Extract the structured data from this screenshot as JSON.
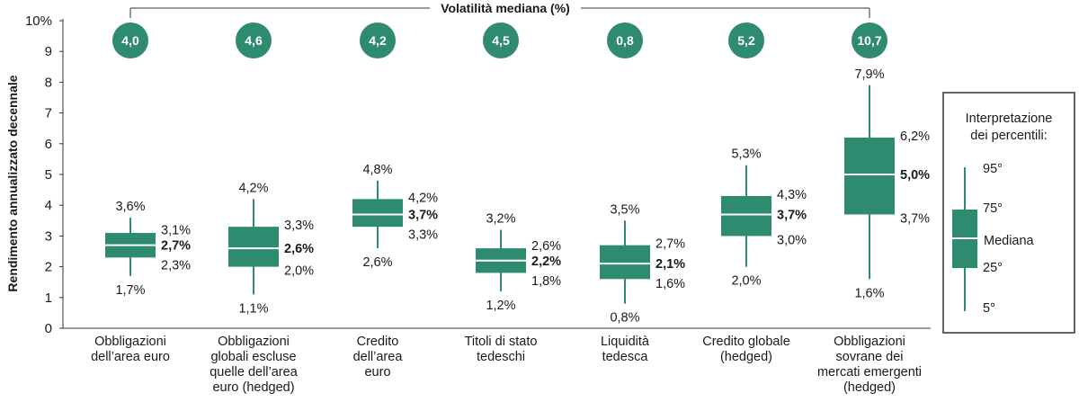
{
  "colors": {
    "box": "#2e8b70",
    "median": "#ffffff",
    "text": "#1a1a1a",
    "axis": "#333333",
    "legend_border": "#333333"
  },
  "chart_data": {
    "type": "box",
    "ylabel": "Rendimento annualizzato decennale",
    "ylim": [
      0,
      10
    ],
    "yticks": [
      "0",
      "1",
      "2",
      "3",
      "4",
      "5",
      "6",
      "7",
      "8",
      "9",
      "10%"
    ],
    "volatility_title": "Volatilità mediana (%)",
    "categories": [
      {
        "label": [
          "Obbligazioni",
          "dell’area euro"
        ],
        "volatility": "4,0",
        "p5": 1.7,
        "p25": 2.3,
        "median": 2.7,
        "p75": 3.1,
        "p95": 3.6,
        "labels": {
          "p5": "1,7%",
          "p25": "2,3%",
          "median": "2,7%",
          "p75": "3,1%",
          "p95": "3,6%"
        }
      },
      {
        "label": [
          "Obbligazioni",
          "globali escluse",
          "quelle dell’area",
          "euro (hedged)"
        ],
        "volatility": "4,6",
        "p5": 1.1,
        "p25": 2.0,
        "median": 2.6,
        "p75": 3.3,
        "p95": 4.2,
        "labels": {
          "p5": "1,1%",
          "p25": "2,0%",
          "median": "2,6%",
          "p75": "3,3%",
          "p95": "4,2%"
        }
      },
      {
        "label": [
          "Credito",
          "dell’area",
          "euro"
        ],
        "volatility": "4,2",
        "p5": 2.6,
        "p25": 3.3,
        "median": 3.7,
        "p75": 4.2,
        "p95": 4.8,
        "labels": {
          "p5": "2,6%",
          "p25": "3,3%",
          "median": "3,7%",
          "p75": "4,2%",
          "p95": "4,8%"
        }
      },
      {
        "label": [
          "Titoli di stato",
          "tedeschi"
        ],
        "volatility": "4,5",
        "p5": 1.2,
        "p25": 1.8,
        "median": 2.2,
        "p75": 2.6,
        "p95": 3.2,
        "labels": {
          "p5": "1,2%",
          "p25": "1,8%",
          "median": "2,2%",
          "p75": "2,6%",
          "p95": "3,2%"
        }
      },
      {
        "label": [
          "Liquidità",
          "tedesca"
        ],
        "volatility": "0,8",
        "p5": 0.8,
        "p25": 1.6,
        "median": 2.1,
        "p75": 2.7,
        "p95": 3.5,
        "labels": {
          "p5": "0,8%",
          "p25": "1,6%",
          "median": "2,1%",
          "p75": "2,7%",
          "p95": "3,5%"
        }
      },
      {
        "label": [
          "Credito globale",
          "(hedged)"
        ],
        "volatility": "5,2",
        "p5": 2.0,
        "p25": 3.0,
        "median": 3.7,
        "p75": 4.3,
        "p95": 5.3,
        "labels": {
          "p5": "2,0%",
          "p25": "3,0%",
          "median": "3,7%",
          "p75": "4,3%",
          "p95": "5,3%"
        }
      },
      {
        "label": [
          "Obbligazioni",
          "sovrane dei",
          "mercati emergenti",
          "(hedged)"
        ],
        "volatility": "10,7",
        "p5": 1.6,
        "p25": 3.7,
        "median": 5.0,
        "p75": 6.2,
        "p95": 7.9,
        "labels": {
          "p5": "1,6%",
          "p25": "3,7%",
          "median": "5,0%",
          "p75": "6,2%",
          "p95": "7,9%"
        }
      }
    ],
    "legend": {
      "title": [
        "Interpretazione",
        "dei percentili:"
      ],
      "p95": "95°",
      "p75": "75°",
      "median": "Mediana",
      "p25": "25°",
      "p5": "5°"
    }
  }
}
